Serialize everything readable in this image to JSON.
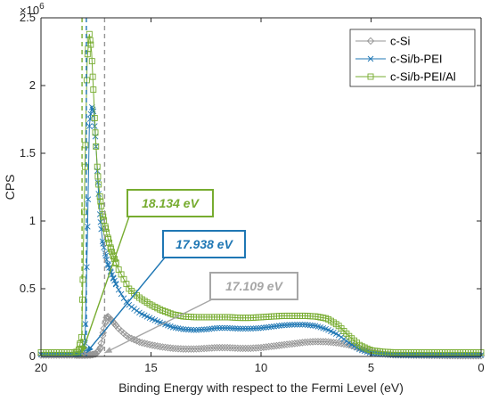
{
  "chart_data": {
    "type": "line",
    "xlabel": "Binding Energy with respect to the Fermi Level (eV)",
    "ylabel": "CPS",
    "y_exponent_label": "×10",
    "y_exponent_power": "6",
    "xlim": [
      20,
      0
    ],
    "ylim": [
      0,
      2500000
    ],
    "x_reversed": true,
    "grid": false,
    "x_ticks": [
      20,
      15,
      10,
      5,
      0
    ],
    "y_ticks": [
      0,
      500000,
      1000000,
      1500000,
      2000000,
      2500000
    ],
    "x_tick_labels": [
      "20",
      "15",
      "10",
      "5",
      "0"
    ],
    "y_tick_labels": [
      "0",
      "0.5",
      "1",
      "1.5",
      "2",
      "2.5"
    ],
    "legend_position": "top-right",
    "series": [
      {
        "name": "c-Si",
        "color": "#969696",
        "marker": "diamond",
        "cutoff": 17.109,
        "x": [
          20,
          19,
          18.5,
          18,
          17.7,
          17.5,
          17.3,
          17.15,
          17,
          16.8,
          16.5,
          16.2,
          16,
          15.7,
          15.5,
          15,
          14.5,
          14,
          13.5,
          13,
          12.5,
          12,
          11.5,
          11,
          10.5,
          10,
          9.5,
          9,
          8.5,
          8,
          7.5,
          7,
          6.5,
          6,
          5.5,
          5,
          4.5,
          4,
          3,
          2,
          1,
          0.3,
          0
        ],
        "y": [
          10000,
          10000,
          10000,
          10000,
          12000,
          20000,
          60000,
          200000,
          300000,
          270000,
          210000,
          165000,
          140000,
          120000,
          105000,
          85000,
          70000,
          60000,
          55000,
          55000,
          60000,
          65000,
          65000,
          60000,
          60000,
          65000,
          75000,
          85000,
          95000,
          105000,
          110000,
          108000,
          100000,
          85000,
          60000,
          35000,
          20000,
          12000,
          9000,
          7000,
          5000,
          5000,
          5000
        ]
      },
      {
        "name": "c-Si/b-PEI",
        "color": "#1f77b4",
        "marker": "x",
        "cutoff": 17.938,
        "x": [
          20,
          19,
          18.5,
          18.2,
          18,
          17.9,
          17.8,
          17.7,
          17.6,
          17.5,
          17.4,
          17.3,
          17.2,
          17,
          16.8,
          16.5,
          16.2,
          16,
          15.5,
          15,
          14.5,
          14,
          13.5,
          13,
          12.5,
          12,
          11.5,
          11,
          10.5,
          10,
          9.5,
          9,
          8.5,
          8,
          7.5,
          7,
          6.5,
          6,
          5.5,
          5,
          4.5,
          4,
          3,
          2,
          1,
          0
        ],
        "y": [
          15000,
          15000,
          15000,
          20000,
          100000,
          800000,
          1700000,
          1850000,
          1800000,
          1550000,
          1250000,
          1000000,
          850000,
          700000,
          610000,
          500000,
          420000,
          380000,
          320000,
          280000,
          245000,
          215000,
          200000,
          195000,
          200000,
          210000,
          210000,
          205000,
          205000,
          210000,
          220000,
          230000,
          235000,
          235000,
          225000,
          200000,
          160000,
          100000,
          50000,
          25000,
          15000,
          12000,
          10000,
          10000,
          10000,
          10000
        ]
      },
      {
        "name": "c-Si/b-PEI/Al",
        "color": "#77ac30",
        "marker": "square",
        "cutoff": 18.134,
        "x": [
          20,
          19,
          18.5,
          18.3,
          18.15,
          18,
          17.9,
          17.8,
          17.7,
          17.6,
          17.5,
          17.4,
          17.3,
          17.2,
          17,
          16.8,
          16.5,
          16.2,
          16,
          15.5,
          15,
          14.5,
          14,
          13.5,
          13,
          12.5,
          12,
          11.5,
          11,
          10.5,
          10,
          9.5,
          9,
          8.5,
          8,
          7.5,
          7,
          6.5,
          6,
          5.5,
          5,
          4.5,
          4,
          3,
          2,
          1,
          0
        ],
        "y": [
          30000,
          30000,
          30000,
          35000,
          150000,
          1400000,
          2200000,
          2380000,
          2250000,
          1900000,
          1550000,
          1300000,
          1150000,
          1050000,
          900000,
          780000,
          650000,
          560000,
          500000,
          430000,
          380000,
          340000,
          310000,
          295000,
          290000,
          290000,
          290000,
          290000,
          285000,
          285000,
          290000,
          295000,
          300000,
          300000,
          300000,
          295000,
          280000,
          230000,
          150000,
          80000,
          45000,
          35000,
          30000,
          30000,
          30000,
          30000,
          30000
        ]
      }
    ],
    "annotations": [
      {
        "text": "18.134 eV",
        "color": "#77ac30",
        "target_x": 18.134,
        "target_y": 0
      },
      {
        "text": "17.938 eV",
        "color": "#1f77b4",
        "target_x": 17.938,
        "target_y": 0
      },
      {
        "text": "17.109 eV",
        "color": "#a6a6a6",
        "target_x": 17.109,
        "target_y": 0
      }
    ]
  }
}
